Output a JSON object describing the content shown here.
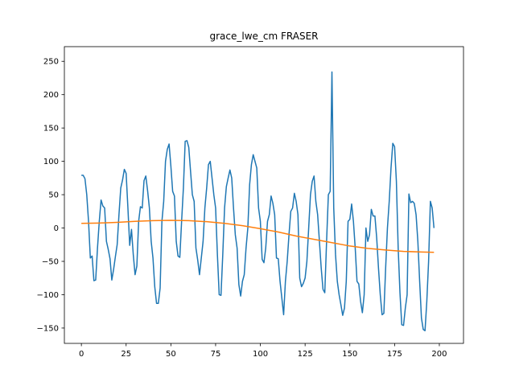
{
  "chart_data": {
    "type": "line",
    "title": "grace_lwe_cm FRASER",
    "xlabel": "",
    "ylabel": "",
    "xlim": [
      -9.5,
      213.5
    ],
    "ylim": [
      -173,
      272
    ],
    "xticks": [
      0,
      25,
      50,
      75,
      100,
      125,
      150,
      175,
      200
    ],
    "yticks": [
      -150,
      -100,
      -50,
      0,
      50,
      100,
      150,
      200,
      250
    ],
    "grid": false,
    "legend": "none",
    "series": [
      {
        "color": "#1f77b4",
        "points": [
          [
            0,
            79
          ],
          [
            1,
            79
          ],
          [
            2,
            74
          ],
          [
            3,
            50
          ],
          [
            4,
            10
          ],
          [
            5,
            -45
          ],
          [
            6,
            -42
          ],
          [
            7,
            -79
          ],
          [
            8,
            -78
          ],
          [
            9,
            -30
          ],
          [
            10,
            10
          ],
          [
            11,
            42
          ],
          [
            12,
            33
          ],
          [
            13,
            30
          ],
          [
            14,
            -20
          ],
          [
            15,
            -32
          ],
          [
            16,
            -46
          ],
          [
            17,
            -78
          ],
          [
            18,
            -62
          ],
          [
            19,
            -43
          ],
          [
            20,
            -25
          ],
          [
            21,
            20
          ],
          [
            22,
            60
          ],
          [
            23,
            72
          ],
          [
            24,
            88
          ],
          [
            25,
            82
          ],
          [
            26,
            30
          ],
          [
            27,
            -26
          ],
          [
            28,
            -2
          ],
          [
            29,
            -40
          ],
          [
            30,
            -70
          ],
          [
            31,
            -57
          ],
          [
            32,
            10
          ],
          [
            33,
            32
          ],
          [
            34,
            30
          ],
          [
            35,
            71
          ],
          [
            36,
            78
          ],
          [
            37,
            56
          ],
          [
            38,
            30
          ],
          [
            39,
            -20
          ],
          [
            40,
            -45
          ],
          [
            41,
            -88
          ],
          [
            42,
            -113
          ],
          [
            43,
            -113
          ],
          [
            44,
            -90
          ],
          [
            45,
            10
          ],
          [
            46,
            40
          ],
          [
            47,
            100
          ],
          [
            48,
            118
          ],
          [
            49,
            126
          ],
          [
            50,
            93
          ],
          [
            51,
            55
          ],
          [
            52,
            48
          ],
          [
            53,
            -20
          ],
          [
            54,
            -42
          ],
          [
            55,
            -44
          ],
          [
            56,
            10
          ],
          [
            57,
            60
          ],
          [
            58,
            130
          ],
          [
            59,
            131
          ],
          [
            60,
            121
          ],
          [
            61,
            85
          ],
          [
            62,
            50
          ],
          [
            63,
            40
          ],
          [
            64,
            -30
          ],
          [
            65,
            -48
          ],
          [
            66,
            -70
          ],
          [
            67,
            -45
          ],
          [
            68,
            -20
          ],
          [
            69,
            30
          ],
          [
            70,
            60
          ],
          [
            71,
            95
          ],
          [
            72,
            100
          ],
          [
            73,
            75
          ],
          [
            74,
            50
          ],
          [
            75,
            30
          ],
          [
            76,
            -40
          ],
          [
            77,
            -100
          ],
          [
            78,
            -101
          ],
          [
            79,
            -40
          ],
          [
            80,
            30
          ],
          [
            81,
            62
          ],
          [
            82,
            75
          ],
          [
            83,
            87
          ],
          [
            84,
            75
          ],
          [
            85,
            30
          ],
          [
            86,
            -10
          ],
          [
            87,
            -30
          ],
          [
            88,
            -85
          ],
          [
            89,
            -102
          ],
          [
            90,
            -80
          ],
          [
            91,
            -70
          ],
          [
            92,
            -30
          ],
          [
            93,
            0
          ],
          [
            94,
            65
          ],
          [
            95,
            95
          ],
          [
            96,
            110
          ],
          [
            97,
            100
          ],
          [
            98,
            90
          ],
          [
            99,
            30
          ],
          [
            100,
            10
          ],
          [
            101,
            -47
          ],
          [
            102,
            -52
          ],
          [
            103,
            -30
          ],
          [
            104,
            10
          ],
          [
            105,
            20
          ],
          [
            106,
            48
          ],
          [
            107,
            37
          ],
          [
            108,
            20
          ],
          [
            109,
            -45
          ],
          [
            110,
            -46
          ],
          [
            111,
            -80
          ],
          [
            112,
            -105
          ],
          [
            113,
            -130
          ],
          [
            114,
            -80
          ],
          [
            115,
            -50
          ],
          [
            116,
            -10
          ],
          [
            117,
            25
          ],
          [
            118,
            30
          ],
          [
            119,
            52
          ],
          [
            120,
            40
          ],
          [
            121,
            20
          ],
          [
            122,
            -75
          ],
          [
            123,
            -88
          ],
          [
            124,
            -83
          ],
          [
            125,
            -75
          ],
          [
            126,
            -50
          ],
          [
            127,
            0
          ],
          [
            128,
            50
          ],
          [
            129,
            70
          ],
          [
            130,
            78
          ],
          [
            131,
            40
          ],
          [
            132,
            20
          ],
          [
            133,
            -20
          ],
          [
            134,
            -60
          ],
          [
            135,
            -92
          ],
          [
            136,
            -97
          ],
          [
            137,
            -20
          ],
          [
            138,
            50
          ],
          [
            139,
            55
          ],
          [
            140,
            234
          ],
          [
            141,
            30
          ],
          [
            142,
            -40
          ],
          [
            143,
            -80
          ],
          [
            144,
            -100
          ],
          [
            145,
            -115
          ],
          [
            146,
            -131
          ],
          [
            147,
            -120
          ],
          [
            148,
            -80
          ],
          [
            149,
            10
          ],
          [
            150,
            13
          ],
          [
            151,
            36
          ],
          [
            152,
            10
          ],
          [
            153,
            -30
          ],
          [
            154,
            -80
          ],
          [
            155,
            -84
          ],
          [
            156,
            -110
          ],
          [
            157,
            -127
          ],
          [
            158,
            -100
          ],
          [
            159,
            0
          ],
          [
            160,
            -20
          ],
          [
            161,
            -10
          ],
          [
            162,
            28
          ],
          [
            163,
            18
          ],
          [
            164,
            18
          ],
          [
            165,
            -15
          ],
          [
            166,
            -60
          ],
          [
            167,
            -100
          ],
          [
            168,
            -130
          ],
          [
            169,
            -128
          ],
          [
            170,
            -60
          ],
          [
            171,
            0
          ],
          [
            172,
            40
          ],
          [
            173,
            90
          ],
          [
            174,
            127
          ],
          [
            175,
            122
          ],
          [
            176,
            70
          ],
          [
            177,
            -30
          ],
          [
            178,
            -97
          ],
          [
            179,
            -145
          ],
          [
            180,
            -146
          ],
          [
            181,
            -120
          ],
          [
            182,
            -100
          ],
          [
            183,
            51
          ],
          [
            184,
            38
          ],
          [
            185,
            40
          ],
          [
            186,
            37
          ],
          [
            187,
            20
          ],
          [
            188,
            -20
          ],
          [
            189,
            -80
          ],
          [
            190,
            -135
          ],
          [
            191,
            -152
          ],
          [
            192,
            -154
          ],
          [
            193,
            -110
          ],
          [
            194,
            -50
          ],
          [
            195,
            40
          ],
          [
            196,
            30
          ],
          [
            197,
            0
          ]
        ]
      },
      {
        "color": "#ff7f0e",
        "points": [
          [
            0,
            7
          ],
          [
            10,
            7.5
          ],
          [
            20,
            8.5
          ],
          [
            30,
            10
          ],
          [
            40,
            11
          ],
          [
            50,
            11.5
          ],
          [
            60,
            11
          ],
          [
            70,
            9.5
          ],
          [
            80,
            7
          ],
          [
            90,
            3.5
          ],
          [
            100,
            -1
          ],
          [
            110,
            -6
          ],
          [
            120,
            -12
          ],
          [
            130,
            -17
          ],
          [
            140,
            -22
          ],
          [
            150,
            -27
          ],
          [
            160,
            -30.5
          ],
          [
            170,
            -33
          ],
          [
            180,
            -35
          ],
          [
            190,
            -36
          ],
          [
            197,
            -36.5
          ]
        ]
      }
    ]
  }
}
